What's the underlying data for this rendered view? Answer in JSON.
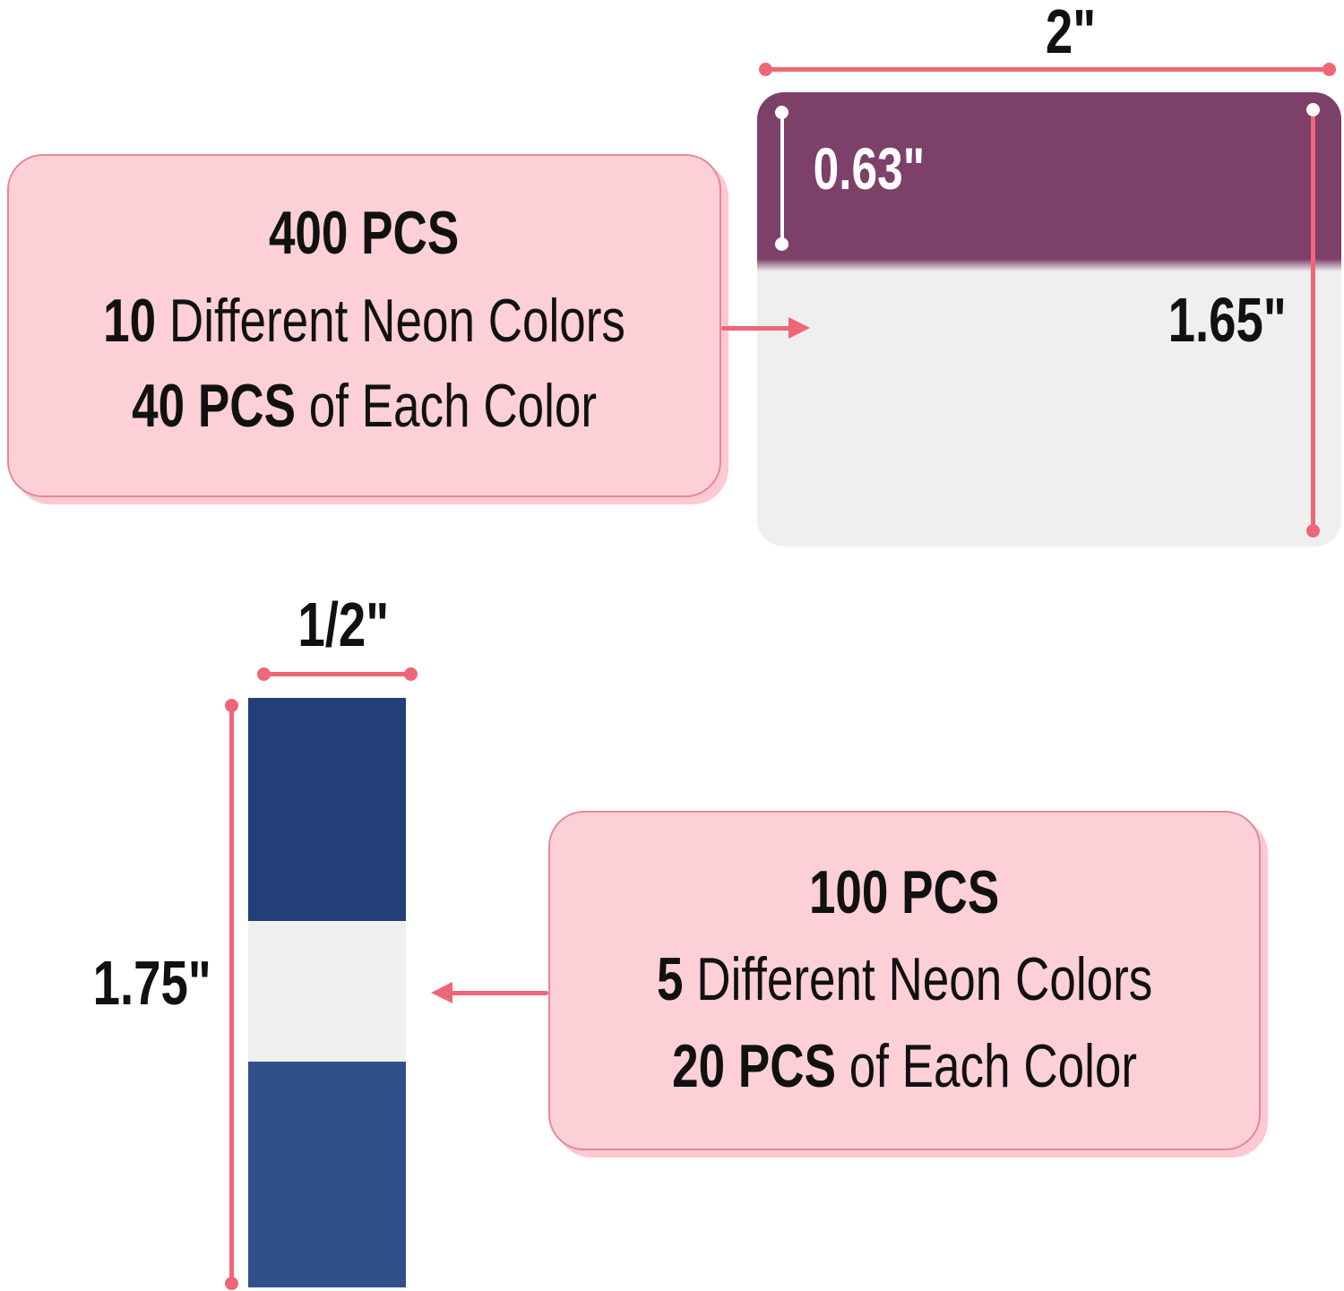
{
  "large_tab": {
    "width_label": "2\"",
    "tab_height_label": "0.63\"",
    "height_label": "1.65\"",
    "tab_color": "#7d4068",
    "info": {
      "line1_bold": "400 PCS",
      "line2_bold": "10",
      "line2_rest": " Different Neon Colors",
      "line3_bold": "40 PCS",
      "line3_rest": " of Each Color"
    }
  },
  "small_tab": {
    "width_label": "1/2\"",
    "height_label": "1.75\"",
    "tab_color": "#233f77",
    "info": {
      "line1_bold": "100 PCS",
      "line2_bold": "5",
      "line2_rest": " Different Neon Colors",
      "line3_bold": "20 PCS",
      "line3_rest": " of Each Color"
    }
  },
  "colors": {
    "accent": "#ee6677",
    "box_bg": "#fdd0d8"
  }
}
